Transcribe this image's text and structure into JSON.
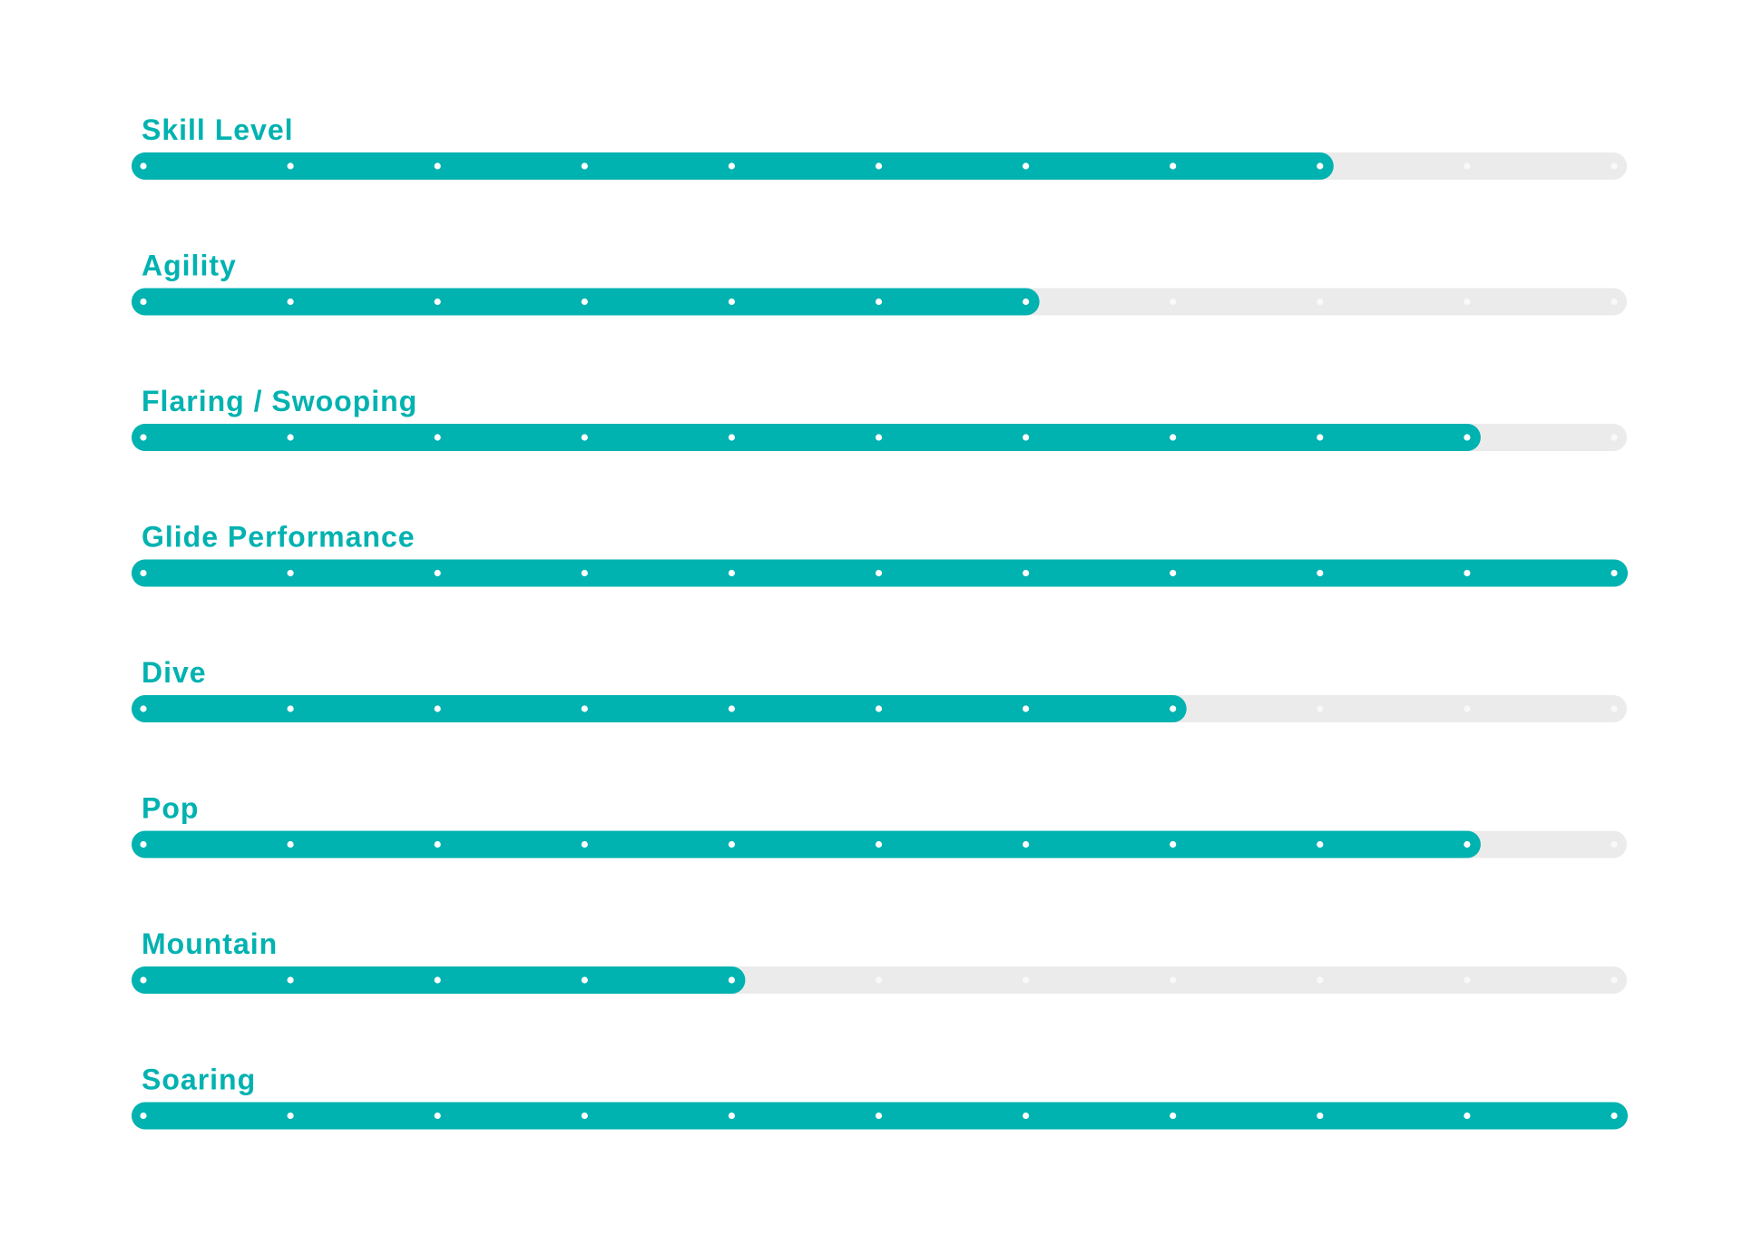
{
  "chart_data": {
    "type": "bar",
    "categories": [
      "Skill Level",
      "Agility",
      "Flaring / Swooping",
      "Glide Performance",
      "Dive",
      "Pop",
      "Mountain",
      "Soaring"
    ],
    "values": [
      8,
      6,
      9,
      10,
      7,
      9,
      4,
      10
    ],
    "xlim": [
      0,
      10
    ],
    "color": "#00b2b0",
    "track_color": "#ebebeb"
  }
}
